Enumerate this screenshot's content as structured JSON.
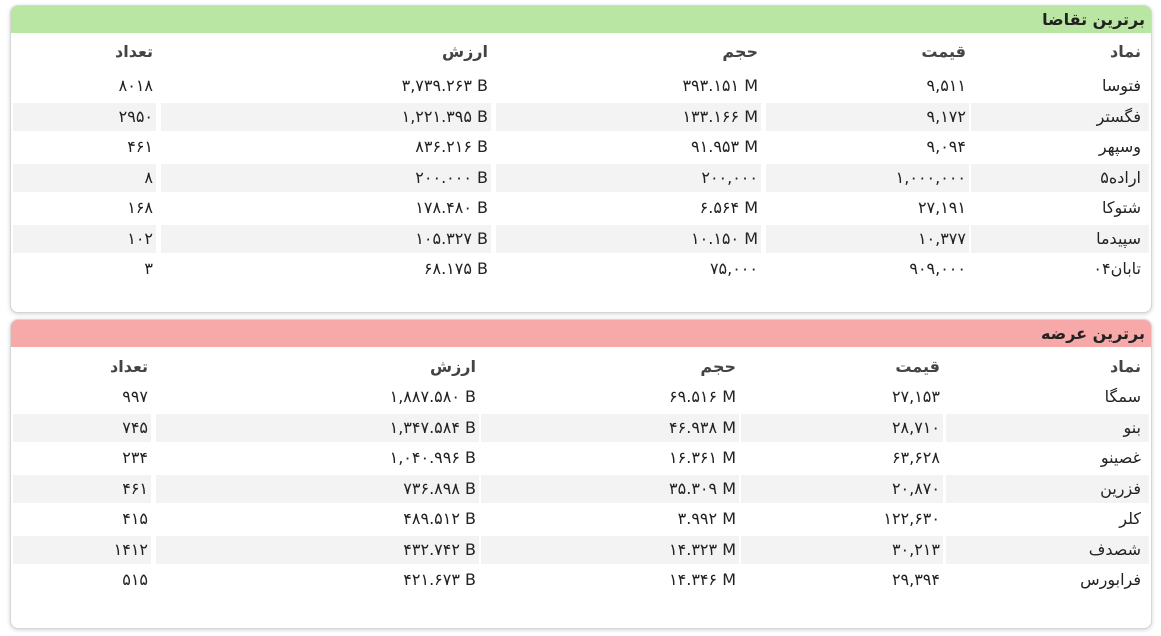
{
  "panels": [
    {
      "title": "برترین تقاضا",
      "columns": [
        "نماد",
        "قیمت",
        "حجم",
        "ارزش",
        "تعداد"
      ],
      "rows": [
        [
          "فتوسا",
          "۹,۵۱۱",
          "۳۹۳.۱۵۱ M",
          "۳,۷۳۹.۲۶۳ B",
          "۸۰۱۸"
        ],
        [
          "فگستر",
          "۹,۱۷۲",
          "۱۳۳.۱۶۶ M",
          "۱,۲۲۱.۳۹۵ B",
          "۲۹۵۰"
        ],
        [
          "وسپهر",
          "۹,۰۹۴",
          "۹۱.۹۵۳ M",
          "۸۳۶.۲۱۶ B",
          "۴۶۱"
        ],
        [
          "اراده۵",
          "۱,۰۰۰,۰۰۰",
          "۲۰۰,۰۰۰",
          "۲۰۰.۰۰۰ B",
          "۸"
        ],
        [
          "شتوکا",
          "۲۷,۱۹۱",
          "۶.۵۶۴ M",
          "۱۷۸.۴۸۰ B",
          "۱۶۸"
        ],
        [
          "سپیدما",
          "۱۰,۳۷۷",
          "۱۰.۱۵۰ M",
          "۱۰۵.۳۲۷ B",
          "۱۰۲"
        ],
        [
          "تابان۰۴",
          "۹۰۹,۰۰۰",
          "۷۵,۰۰۰",
          "۶۸.۱۷۵ B",
          "۳"
        ]
      ]
    },
    {
      "title": "برترین عرضه",
      "columns": [
        "نماد",
        "قیمت",
        "حجم",
        "ارزش",
        "تعداد"
      ],
      "rows": [
        [
          "سمگا",
          "۲۷,۱۵۳",
          "۶۹.۵۱۶ M",
          "۱,۸۸۷.۵۸۰ B",
          "۹۹۷"
        ],
        [
          "بنو",
          "۲۸,۷۱۰",
          "۴۶.۹۳۸ M",
          "۱,۳۴۷.۵۸۴ B",
          "۷۴۵"
        ],
        [
          "غصینو",
          "۶۳,۶۲۸",
          "۱۶.۳۶۱ M",
          "۱,۰۴۰.۹۹۶ B",
          "۲۳۴"
        ],
        [
          "فزرین",
          "۲۰,۸۷۰",
          "۳۵.۳۰۹ M",
          "۷۳۶.۸۹۸ B",
          "۴۶۱"
        ],
        [
          "کلر",
          "۱۲۲,۶۳۰",
          "۳.۹۹۲ M",
          "۴۸۹.۵۱۲ B",
          "۴۱۵"
        ],
        [
          "شصدف",
          "۳۰,۲۱۳",
          "۱۴.۳۲۳ M",
          "۴۳۲.۷۴۲ B",
          "۱۴۱۲"
        ],
        [
          "فرابورس",
          "۲۹,۳۹۴",
          "۱۴.۳۴۶ M",
          "۴۲۱.۶۷۳ B",
          "۵۱۵"
        ]
      ]
    }
  ]
}
